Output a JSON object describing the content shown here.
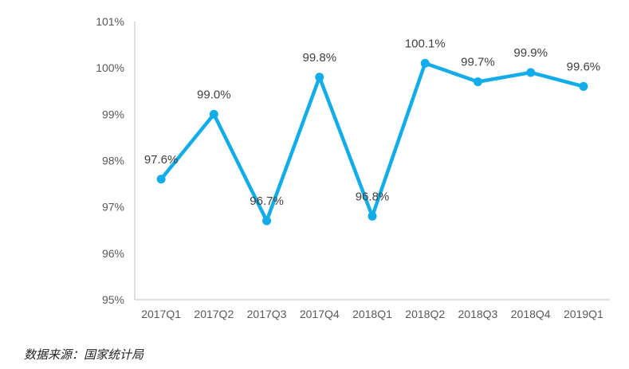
{
  "chart_data": {
    "type": "line",
    "categories": [
      "2017Q1",
      "2017Q2",
      "2017Q3",
      "2017Q4",
      "2018Q1",
      "2018Q2",
      "2018Q3",
      "2018Q4",
      "2019Q1"
    ],
    "values": [
      97.6,
      99.0,
      96.7,
      99.8,
      96.8,
      100.1,
      99.7,
      99.9,
      99.6
    ],
    "data_labels": [
      "97.6%",
      "99.0%",
      "96.7%",
      "99.8%",
      "96.8%",
      "100.1%",
      "99.7%",
      "99.9%",
      "99.6%"
    ],
    "y_ticks": [
      95,
      96,
      97,
      98,
      99,
      100,
      101
    ],
    "y_tick_labels": [
      "95%",
      "96%",
      "97%",
      "98%",
      "99%",
      "100%",
      "101%"
    ],
    "ylim": [
      95,
      101
    ],
    "title": "",
    "xlabel": "",
    "ylabel": "",
    "grid": false,
    "line_color": "#12ADE8",
    "axis_color": "#BFBFBF"
  },
  "footer": {
    "source_note": "数据来源：国家统计局"
  }
}
